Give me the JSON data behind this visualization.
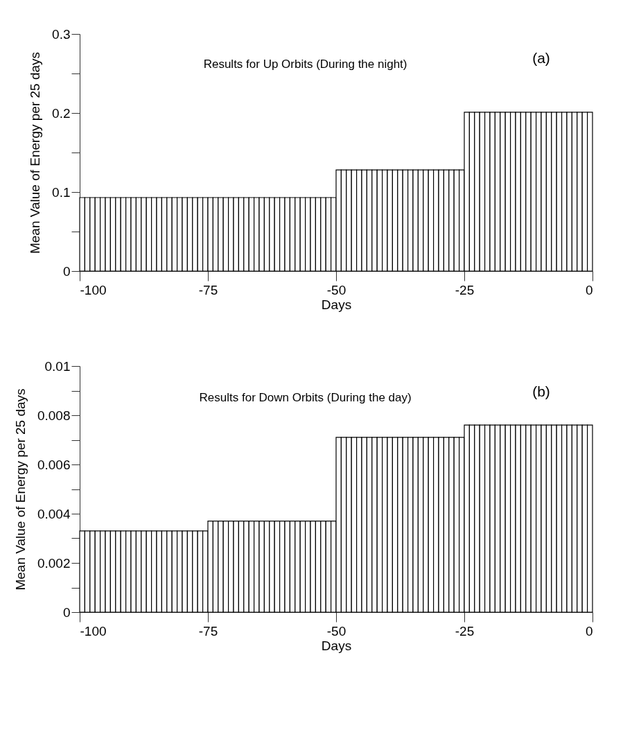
{
  "chart_data": [
    {
      "type": "histogram",
      "xlabel": "Days",
      "ylabel": "Mean Value of Energy per 25 days",
      "annotations": [
        "Results for Up Orbits (During the night)",
        "(a)"
      ],
      "bins": [
        -100,
        -99,
        -98,
        -97,
        -96,
        -95,
        -94,
        -93,
        -92,
        -91,
        -90,
        -89,
        -88,
        -87,
        -86,
        -85,
        -84,
        -83,
        -82,
        -81,
        -80,
        -79,
        -78,
        -77,
        -76,
        -75,
        -74,
        -73,
        -72,
        -71,
        -70,
        -69,
        -68,
        -67,
        -66,
        -65,
        -64,
        -63,
        -62,
        -61,
        -60,
        -59,
        -58,
        -57,
        -56,
        -55,
        -54,
        -53,
        -52,
        -51,
        -50,
        -49,
        -48,
        -47,
        -46,
        -45,
        -44,
        -43,
        -42,
        -41,
        -40,
        -39,
        -38,
        -37,
        -36,
        -35,
        -34,
        -33,
        -32,
        -31,
        -30,
        -29,
        -28,
        -27,
        -26,
        -25,
        -24,
        -23,
        -22,
        -21,
        -20,
        -19,
        -18,
        -17,
        -16,
        -15,
        -14,
        -13,
        -12,
        -11,
        -10,
        -9,
        -8,
        -7,
        -6,
        -5,
        -4,
        -3,
        -2,
        -1,
        0
      ],
      "values": [
        0.093,
        0.093,
        0.093,
        0.093,
        0.093,
        0.093,
        0.093,
        0.093,
        0.093,
        0.093,
        0.093,
        0.093,
        0.093,
        0.093,
        0.093,
        0.093,
        0.093,
        0.093,
        0.093,
        0.093,
        0.093,
        0.093,
        0.093,
        0.093,
        0.093,
        0.093,
        0.093,
        0.093,
        0.093,
        0.093,
        0.093,
        0.093,
        0.093,
        0.093,
        0.093,
        0.093,
        0.093,
        0.093,
        0.093,
        0.093,
        0.093,
        0.093,
        0.093,
        0.093,
        0.093,
        0.093,
        0.093,
        0.093,
        0.093,
        0.093,
        0.128,
        0.128,
        0.128,
        0.128,
        0.128,
        0.128,
        0.128,
        0.128,
        0.128,
        0.128,
        0.128,
        0.128,
        0.128,
        0.128,
        0.128,
        0.128,
        0.128,
        0.128,
        0.128,
        0.128,
        0.128,
        0.128,
        0.128,
        0.128,
        0.128,
        0.201,
        0.201,
        0.201,
        0.201,
        0.201,
        0.201,
        0.201,
        0.201,
        0.201,
        0.201,
        0.201,
        0.201,
        0.201,
        0.201,
        0.201,
        0.201,
        0.201,
        0.201,
        0.201,
        0.201,
        0.201,
        0.201,
        0.201,
        0.201,
        0.201
      ],
      "color": "#ffffff",
      "xlim": [
        -100,
        0
      ],
      "xticks": [
        -100,
        -75,
        -50,
        -25,
        0
      ],
      "ylim": [
        0,
        0.3
      ],
      "yticks": [
        0,
        {
          "value": 0.05,
          "label": null
        },
        0.1,
        {
          "value": 0.15,
          "label": null
        },
        0.2,
        {
          "value": 0.25,
          "label": null
        },
        0.3
      ],
      "grid": false
    },
    {
      "type": "histogram",
      "xlabel": "Days",
      "ylabel": "Mean Value of Energy per 25 days",
      "annotations": [
        "Results for Down Orbits (During the day)",
        "(b)"
      ],
      "bins": [
        -100,
        -99,
        -98,
        -97,
        -96,
        -95,
        -94,
        -93,
        -92,
        -91,
        -90,
        -89,
        -88,
        -87,
        -86,
        -85,
        -84,
        -83,
        -82,
        -81,
        -80,
        -79,
        -78,
        -77,
        -76,
        -75,
        -74,
        -73,
        -72,
        -71,
        -70,
        -69,
        -68,
        -67,
        -66,
        -65,
        -64,
        -63,
        -62,
        -61,
        -60,
        -59,
        -58,
        -57,
        -56,
        -55,
        -54,
        -53,
        -52,
        -51,
        -50,
        -49,
        -48,
        -47,
        -46,
        -45,
        -44,
        -43,
        -42,
        -41,
        -40,
        -39,
        -38,
        -37,
        -36,
        -35,
        -34,
        -33,
        -32,
        -31,
        -30,
        -29,
        -28,
        -27,
        -26,
        -25,
        -24,
        -23,
        -22,
        -21,
        -20,
        -19,
        -18,
        -17,
        -16,
        -15,
        -14,
        -13,
        -12,
        -11,
        -10,
        -9,
        -8,
        -7,
        -6,
        -5,
        -4,
        -3,
        -2,
        -1,
        0
      ],
      "values": [
        0.0033,
        0.0033,
        0.0033,
        0.0033,
        0.0033,
        0.0033,
        0.0033,
        0.0033,
        0.0033,
        0.0033,
        0.0033,
        0.0033,
        0.0033,
        0.0033,
        0.0033,
        0.0033,
        0.0033,
        0.0033,
        0.0033,
        0.0033,
        0.0033,
        0.0033,
        0.0033,
        0.0033,
        0.0033,
        0.0037,
        0.0037,
        0.0037,
        0.0037,
        0.0037,
        0.0037,
        0.0037,
        0.0037,
        0.0037,
        0.0037,
        0.0037,
        0.0037,
        0.0037,
        0.0037,
        0.0037,
        0.0037,
        0.0037,
        0.0037,
        0.0037,
        0.0037,
        0.0037,
        0.0037,
        0.0037,
        0.0037,
        0.0037,
        0.0071,
        0.0071,
        0.0071,
        0.0071,
        0.0071,
        0.0071,
        0.0071,
        0.0071,
        0.0071,
        0.0071,
        0.0071,
        0.0071,
        0.0071,
        0.0071,
        0.0071,
        0.0071,
        0.0071,
        0.0071,
        0.0071,
        0.0071,
        0.0071,
        0.0071,
        0.0071,
        0.0071,
        0.0071,
        0.0076,
        0.0076,
        0.0076,
        0.0076,
        0.0076,
        0.0076,
        0.0076,
        0.0076,
        0.0076,
        0.0076,
        0.0076,
        0.0076,
        0.0076,
        0.0076,
        0.0076,
        0.0076,
        0.0076,
        0.0076,
        0.0076,
        0.0076,
        0.0076,
        0.0076,
        0.0076,
        0.0076,
        0.0076
      ],
      "color": "#ffffff",
      "xlim": [
        -100,
        0
      ],
      "xticks": [
        -100,
        -75,
        -50,
        -25,
        0
      ],
      "ylim": [
        0,
        0.01
      ],
      "yticks": [
        0,
        {
          "value": 0.001,
          "label": null
        },
        0.002,
        {
          "value": 0.003,
          "label": null
        },
        0.004,
        {
          "value": 0.005,
          "label": null
        },
        0.006,
        {
          "value": 0.007,
          "label": null
        },
        0.008,
        {
          "value": 0.009,
          "label": null
        },
        0.01
      ],
      "grid": false
    }
  ]
}
